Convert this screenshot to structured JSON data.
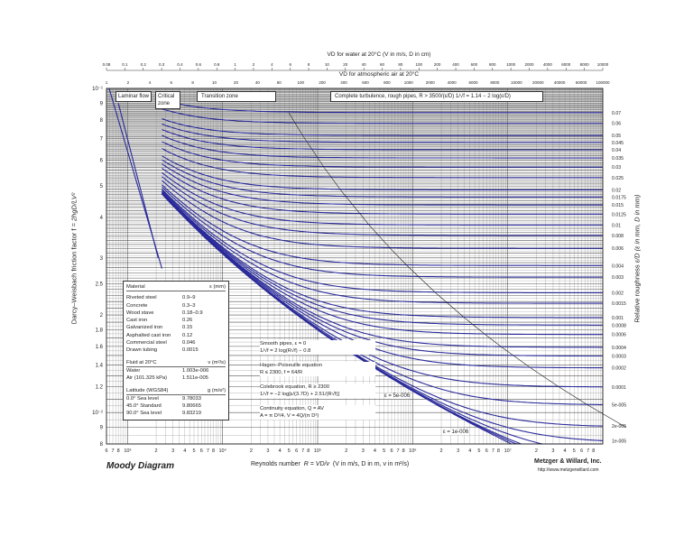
{
  "chart_data": {
    "type": "line",
    "title": "Moody Diagram",
    "xlabel": "Reynolds number",
    "xlabel_formula": "R = VD/ν",
    "xlabel_units": "(V in m/s, D in m, ν in m²/s)",
    "ylabel": "Darcy–Weisbach friction factor f",
    "ylabel_formula": "= 2hgD/LV²",
    "y2label": "Relative roughness",
    "y2label_formula": "ε/D (ε in mm, D in mm)",
    "xscale": "log",
    "yscale": "log",
    "xlim": [
      600,
      100000000
    ],
    "ylim": [
      0.008,
      0.1
    ],
    "x_tick_labels": [
      "6",
      "7",
      "8",
      "10³",
      "2",
      "3",
      "4",
      "5",
      "6",
      "7",
      "8",
      "10⁴",
      "2",
      "3",
      "4",
      "5",
      "6",
      "7",
      "8",
      "10⁵",
      "2",
      "3",
      "4",
      "5",
      "6",
      "7",
      "8",
      "10⁶",
      "2",
      "3",
      "4",
      "5",
      "6",
      "7",
      "8",
      "10⁷",
      "2",
      "3",
      "4",
      "5",
      "6",
      "7",
      "8"
    ],
    "y_tick_labels": [
      "10⁻¹",
      "9",
      "8",
      "7",
      "6",
      "5",
      "4",
      "3",
      "2.5",
      "2",
      "1.8",
      "1.6",
      "1.4",
      "1.2",
      "10⁻²",
      "9",
      "8"
    ],
    "roughness_labels": [
      "0.07",
      "0.06",
      "0.05",
      "0.045",
      "0.04",
      "0.035",
      "0.03",
      "0.025",
      "0.02",
      "0.0175",
      "0.015",
      "0.0125",
      "0.01",
      "0.008",
      "0.006",
      "0.004",
      "0.003",
      "0.002",
      "0.0015",
      "0.001",
      "0.0008",
      "0.0006",
      "0.0004",
      "0.0003",
      "0.0002",
      "0.0001",
      "5e-005",
      "2e-005",
      "1e-005"
    ],
    "roughness_values": [
      0.07,
      0.06,
      0.05,
      0.045,
      0.04,
      0.035,
      0.03,
      0.025,
      0.02,
      0.0175,
      0.015,
      0.0125,
      0.01,
      0.008,
      0.006,
      0.004,
      0.003,
      0.002,
      0.0015,
      0.001,
      0.0008,
      0.0006,
      0.0004,
      0.0003,
      0.0002,
      0.0001,
      5e-05,
      2e-05,
      1e-05,
      5e-06,
      2e-06,
      1e-06
    ],
    "zones": [
      "Laminar flow",
      "Critical zone",
      "Transition zone",
      "Complete turbulence, rough pipes, R > 3500/(ε/D)   1/√f = 1.14 − 2 log(ε/D)"
    ],
    "top_scale_1": {
      "label": "VD for water at 20°C (V in m/s, D in cm)",
      "ticks": [
        "0.08",
        "0.1",
        "0.2",
        "0.3",
        "0.4",
        "0.6",
        "0.8",
        "1",
        "2",
        "4",
        "6",
        "8",
        "10",
        "20",
        "40",
        "60",
        "80",
        "100",
        "200",
        "400",
        "600",
        "800",
        "1000",
        "2000",
        "4000",
        "6000",
        "8000",
        "10000"
      ]
    },
    "top_scale_2": {
      "label": "VD for atmospheric air at 20°C",
      "ticks": [
        "1",
        "2",
        "4",
        "6",
        "8",
        "10",
        "20",
        "40",
        "60",
        "100",
        "200",
        "400",
        "600",
        "800",
        "1000",
        "2000",
        "4000",
        "6000",
        "8000",
        "10000",
        "20000",
        "40000",
        "60000",
        "100000"
      ]
    },
    "annotations": [
      {
        "title": "Smooth pipes, ε = 0",
        "eq": "1/√f = 2 log(R√f) − 0.8"
      },
      {
        "title": "Hagen–Poiseuille equation",
        "eq": "R ≤ 2300,  f = 64/R"
      },
      {
        "title": "Colebrook equation, R ≥ 2300",
        "eq": "1/√f = −2 log[ε/(3.7D) + 2.51/(R√f)]"
      },
      {
        "title": "Continuity equation, Q = AV",
        "eq": "A = π D²/4,  V = 4Q/(π D²)"
      }
    ],
    "curve_labels": [
      "ε = 5e-006",
      "ε = 1e-006"
    ]
  },
  "material_table": {
    "header": [
      "Material",
      "ε (mm)"
    ],
    "rows": [
      [
        "Riveted steel",
        "0.9–9"
      ],
      [
        "Concrete",
        "0.3–3"
      ],
      [
        "Wood stave",
        "0.18–0.9"
      ],
      [
        "Cast iron",
        "0.26"
      ],
      [
        "Galvanized iron",
        "0.15"
      ],
      [
        "Asphalted cast iron",
        "0.12"
      ],
      [
        "Commercial steel",
        "0.046"
      ],
      [
        "Drawn tubing",
        "0.0015"
      ]
    ],
    "fluid_header": [
      "Fluid at 20°C",
      "ν (m²/s)"
    ],
    "fluid_rows": [
      [
        "Water",
        "1.003e-006"
      ],
      [
        "Air (101.325 kPa)",
        "1.511e-005"
      ]
    ],
    "lat_header": [
      "Latitude (WGS84)",
      "g (m/s²)"
    ],
    "lat_rows": [
      [
        "0.0°  Sea level",
        "9.78033"
      ],
      [
        "45.0°  Standard",
        "9.80665"
      ],
      [
        "90.0°  Sea level",
        "9.83219"
      ]
    ]
  },
  "footer": {
    "company": "Metzger & Willard, Inc.",
    "url": "http://www.metzgerwillard.com"
  }
}
